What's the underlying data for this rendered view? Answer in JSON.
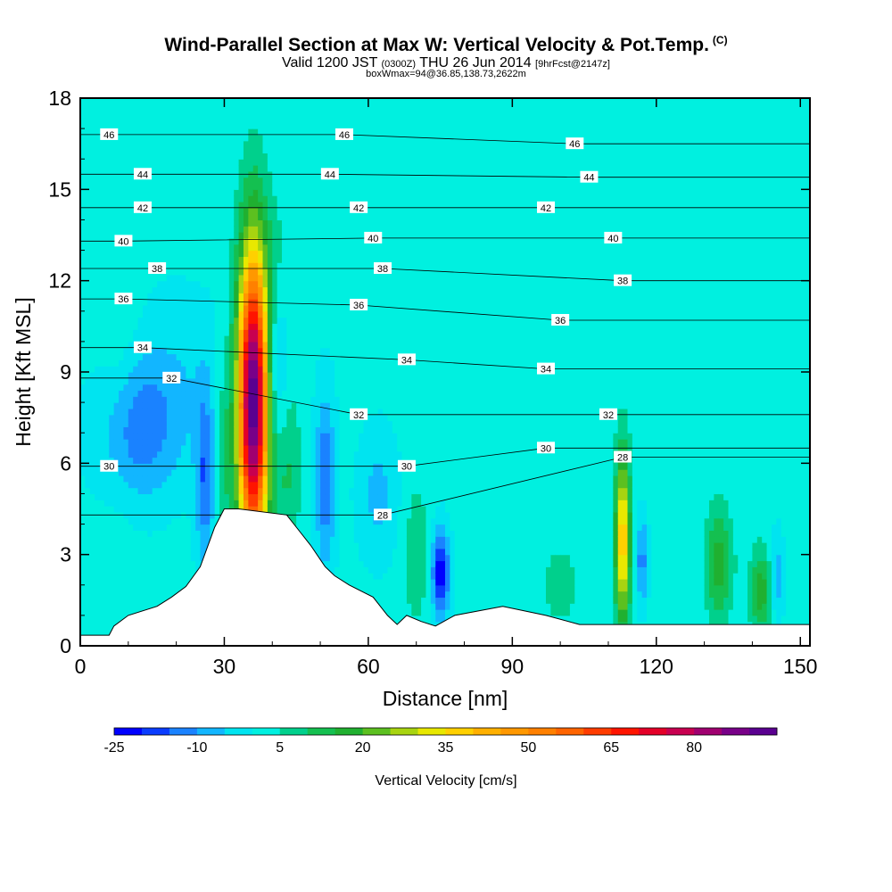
{
  "header": {
    "title": "Wind-Parallel Section at Max W: Vertical Velocity & Pot.Temp.",
    "title_unit": "(C)",
    "valid_prefix": "Valid 1200 JST",
    "valid_utc": "(0300Z)",
    "valid_date": "THU 26 Jun 2014",
    "forecast": "[9hrFcst@2147z]",
    "box_info": "boxWmax=94@36.85,138.73,2622m"
  },
  "chart_data": {
    "type": "heatmap",
    "xlabel": "Distance [nm]",
    "ylabel": "Height [Kft MSL]",
    "xlim": [
      0,
      152
    ],
    "ylim": [
      0,
      18
    ],
    "x_ticks": [
      0,
      30,
      60,
      90,
      120,
      150
    ],
    "y_ticks": [
      0,
      3,
      6,
      9,
      12,
      15,
      18
    ],
    "colorbar": {
      "label": "Vertical Velocity [cm/s]",
      "tick_labels": [
        "-25",
        "-10",
        "5",
        "20",
        "35",
        "50",
        "65",
        "80"
      ],
      "levels": [
        -25,
        -20,
        -15,
        -10,
        -5,
        0,
        5,
        10,
        15,
        20,
        25,
        30,
        35,
        40,
        45,
        50,
        55,
        60,
        65,
        70,
        75,
        80,
        85,
        90
      ],
      "colors": [
        "#0000ff",
        "#0a3cff",
        "#1a82ff",
        "#12b6ff",
        "#00e4f0",
        "#00f0e0",
        "#00d08c",
        "#14c050",
        "#20b030",
        "#5cc020",
        "#a8d410",
        "#e8e800",
        "#ffd000",
        "#ffb000",
        "#ff9800",
        "#ff8000",
        "#ff6400",
        "#ff3c00",
        "#ff1400",
        "#e40028",
        "#c80050",
        "#a00070",
        "#780088",
        "#5a0090"
      ]
    },
    "terrain_profile": {
      "x": [
        0,
        6,
        6,
        7,
        7,
        10,
        10,
        16,
        16,
        19,
        19,
        22,
        22,
        25,
        25,
        28,
        28,
        30,
        30,
        33,
        33,
        43,
        43,
        45,
        45,
        48,
        48,
        51,
        51,
        53,
        53,
        56,
        56,
        61,
        61,
        64,
        64,
        66,
        66,
        68,
        68,
        71,
        71,
        74,
        74,
        78,
        78,
        88,
        88,
        97,
        97,
        104,
        104,
        115,
        115,
        152
      ],
      "y": [
        0.35,
        0.35,
        0.35,
        0.65,
        0.65,
        1.0,
        1.0,
        1.3,
        1.3,
        1.6,
        1.6,
        1.95,
        1.95,
        2.6,
        2.6,
        3.9,
        3.9,
        4.5,
        4.5,
        4.5,
        4.5,
        4.3,
        4.3,
        3.9,
        3.9,
        3.3,
        3.3,
        2.6,
        2.6,
        2.3,
        2.3,
        2.0,
        2.0,
        1.6,
        1.6,
        1.0,
        1.0,
        0.7,
        0.7,
        1.0,
        1.0,
        0.8,
        0.8,
        0.65,
        0.65,
        1.0,
        1.0,
        1.3,
        1.3,
        1.0,
        1.0,
        0.7,
        0.7,
        0.7,
        0.7,
        0.7
      ]
    },
    "updraft_cells": [
      {
        "x": 36,
        "y": 8.0,
        "sx": 2.2,
        "sy": 3.5,
        "amp": 94
      },
      {
        "x": 30,
        "y": 6.5,
        "sx": 1.4,
        "sy": 2.2,
        "amp": 8
      },
      {
        "x": 43,
        "y": 6.0,
        "sx": 2.0,
        "sy": 2.2,
        "amp": 10
      },
      {
        "x": 113,
        "y": 3.5,
        "sx": 1.1,
        "sy": 2.0,
        "amp": 38
      },
      {
        "x": 133,
        "y": 2.7,
        "sx": 2.0,
        "sy": 1.3,
        "amp": 16
      },
      {
        "x": 142,
        "y": 1.8,
        "sx": 1.8,
        "sy": 1.0,
        "amp": 16
      },
      {
        "x": 70,
        "y": 3.0,
        "sx": 2.0,
        "sy": 1.8,
        "amp": 7
      },
      {
        "x": 100,
        "y": 2.0,
        "sx": 3.0,
        "sy": 1.0,
        "amp": 6
      },
      {
        "x": 8,
        "y": 11.0,
        "sx": 3.0,
        "sy": 5.0,
        "amp": 4
      },
      {
        "x": 41,
        "y": 12.5,
        "sx": 3.0,
        "sy": 2.0,
        "amp": 4
      },
      {
        "x": 58,
        "y": 10.5,
        "sx": 2.0,
        "sy": 1.5,
        "amp": 3
      }
    ],
    "downdraft_cells": [
      {
        "x": 12,
        "y": 7.0,
        "sx": 6.0,
        "sy": 1.6,
        "amp": -14
      },
      {
        "x": 26,
        "y": 5.5,
        "sx": 1.4,
        "sy": 2.0,
        "amp": -16
      },
      {
        "x": 41,
        "y": 9.0,
        "sx": 1.8,
        "sy": 2.0,
        "amp": -12
      },
      {
        "x": 51,
        "y": 5.5,
        "sx": 1.5,
        "sy": 2.0,
        "amp": -16
      },
      {
        "x": 75,
        "y": 2.4,
        "sx": 1.3,
        "sy": 1.0,
        "amp": -26
      },
      {
        "x": 62,
        "y": 5.0,
        "sx": 3.0,
        "sy": 1.5,
        "amp": -8
      },
      {
        "x": 117,
        "y": 2.8,
        "sx": 0.9,
        "sy": 1.0,
        "amp": -14
      },
      {
        "x": 145,
        "y": 2.2,
        "sx": 1.0,
        "sy": 1.0,
        "amp": -12
      },
      {
        "x": 20,
        "y": 9.0,
        "sx": 8.0,
        "sy": 2.0,
        "amp": -5
      }
    ],
    "theta_contour_labels": [
      {
        "text": "46",
        "x": 6,
        "y": 16.8
      },
      {
        "text": "46",
        "x": 55,
        "y": 16.8
      },
      {
        "text": "46",
        "x": 103,
        "y": 16.5
      },
      {
        "text": "44",
        "x": 13,
        "y": 15.5
      },
      {
        "text": "44",
        "x": 52,
        "y": 15.5
      },
      {
        "text": "44",
        "x": 106,
        "y": 15.4
      },
      {
        "text": "42",
        "x": 13,
        "y": 14.4
      },
      {
        "text": "42",
        "x": 58,
        "y": 14.4
      },
      {
        "text": "42",
        "x": 97,
        "y": 14.4
      },
      {
        "text": "40",
        "x": 9,
        "y": 13.3
      },
      {
        "text": "40",
        "x": 61,
        "y": 13.4
      },
      {
        "text": "40",
        "x": 111,
        "y": 13.4
      },
      {
        "text": "38",
        "x": 16,
        "y": 12.4
      },
      {
        "text": "38",
        "x": 63,
        "y": 12.4
      },
      {
        "text": "38",
        "x": 113,
        "y": 12.0
      },
      {
        "text": "36",
        "x": 9,
        "y": 11.4
      },
      {
        "text": "36",
        "x": 58,
        "y": 11.2
      },
      {
        "text": "36",
        "x": 100,
        "y": 10.7
      },
      {
        "text": "34",
        "x": 13,
        "y": 9.8
      },
      {
        "text": "34",
        "x": 68,
        "y": 9.4
      },
      {
        "text": "34",
        "x": 97,
        "y": 9.1
      },
      {
        "text": "32",
        "x": 19,
        "y": 8.8
      },
      {
        "text": "32",
        "x": 58,
        "y": 7.6
      },
      {
        "text": "32",
        "x": 110,
        "y": 7.6
      },
      {
        "text": "30",
        "x": 6,
        "y": 5.9
      },
      {
        "text": "30",
        "x": 68,
        "y": 5.9
      },
      {
        "text": "30",
        "x": 97,
        "y": 6.5
      },
      {
        "text": "28",
        "x": 63,
        "y": 4.3
      },
      {
        "text": "28",
        "x": 113,
        "y": 6.2
      }
    ]
  }
}
